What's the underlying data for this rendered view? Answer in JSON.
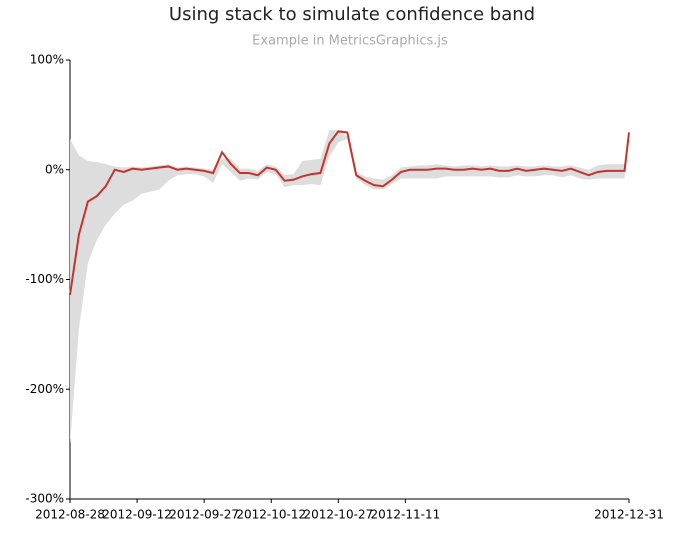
{
  "chart_data": {
    "type": "confidence-band",
    "title": "Using stack to simulate confidence band",
    "subtitle": "Example in MetricsGraphics.js",
    "x": [
      "2012-08-28",
      "2012-08-30",
      "2012-09-01",
      "2012-09-03",
      "2012-09-05",
      "2012-09-07",
      "2012-09-09",
      "2012-09-11",
      "2012-09-13",
      "2012-09-15",
      "2012-09-17",
      "2012-09-19",
      "2012-09-21",
      "2012-09-23",
      "2012-09-25",
      "2012-09-27",
      "2012-09-29",
      "2012-10-01",
      "2012-10-03",
      "2012-10-05",
      "2012-10-07",
      "2012-10-09",
      "2012-10-11",
      "2012-10-13",
      "2012-10-15",
      "2012-10-17",
      "2012-10-19",
      "2012-10-21",
      "2012-10-23",
      "2012-10-25",
      "2012-10-27",
      "2012-10-29",
      "2012-10-31",
      "2012-11-02",
      "2012-11-04",
      "2012-11-06",
      "2012-11-08",
      "2012-11-10",
      "2012-11-12",
      "2012-11-14",
      "2012-11-16",
      "2012-11-18",
      "2012-11-20",
      "2012-11-22",
      "2012-11-24",
      "2012-11-26",
      "2012-11-28",
      "2012-11-30",
      "2012-12-02",
      "2012-12-04",
      "2012-12-06",
      "2012-12-08",
      "2012-12-10",
      "2012-12-12",
      "2012-12-14",
      "2012-12-16",
      "2012-12-18",
      "2012-12-20",
      "2012-12-22",
      "2012-12-24",
      "2012-12-26",
      "2012-12-28",
      "2012-12-30",
      "2012-12-31"
    ],
    "line": {
      "color": "#c2342f",
      "values": [
        -114,
        -59,
        -29,
        -24,
        -15,
        0,
        -2,
        1,
        0,
        1,
        2,
        3,
        0,
        1,
        0,
        -1,
        -3,
        16,
        5,
        -3,
        -3,
        -5,
        2,
        0,
        -10,
        -9,
        -6,
        -4,
        -3,
        24,
        35,
        34,
        -5,
        -10,
        -14,
        -15,
        -9,
        -2,
        0,
        0,
        0,
        1,
        1,
        0,
        0,
        1,
        0,
        1,
        -1,
        -1,
        1,
        -1,
        0,
        1,
        0,
        -1,
        1,
        -2,
        -5,
        -2,
        -1,
        -1,
        -1,
        34
      ]
    },
    "band": {
      "color": "#dddddd",
      "upper": [
        28,
        13,
        8,
        7,
        5,
        3,
        2,
        3,
        2,
        3,
        4,
        5,
        2,
        3,
        2,
        1,
        0,
        10,
        10,
        1,
        1,
        -1,
        5,
        3,
        -5,
        -4,
        8,
        9,
        10,
        36,
        36,
        30,
        -2,
        -6,
        -8,
        -9,
        -5,
        2,
        3,
        4,
        4,
        5,
        4,
        3,
        4,
        4,
        3,
        4,
        3,
        3,
        4,
        3,
        3,
        4,
        3,
        3,
        4,
        2,
        0,
        4,
        5,
        5,
        5,
        36
      ],
      "lower": [
        -250,
        -145,
        -85,
        -64,
        -50,
        -40,
        -32,
        -28,
        -22,
        -20,
        -18,
        -10,
        -5,
        -4,
        -4,
        -6,
        -12,
        5,
        -2,
        -10,
        -8,
        -9,
        -2,
        -4,
        -16,
        -14,
        -14,
        -13,
        -14,
        12,
        25,
        28,
        -8,
        -14,
        -18,
        -18,
        -13,
        -8,
        -8,
        -8,
        -8,
        -8,
        -6,
        -6,
        -6,
        -6,
        -6,
        -6,
        -7,
        -7,
        -5,
        -6,
        -6,
        -5,
        -5,
        -7,
        -5,
        -8,
        -9,
        -8,
        -8,
        -8,
        -8,
        30
      ]
    },
    "xlim": [
      "2012-08-28",
      "2012-12-31"
    ],
    "xticks": [
      "2012-08-28",
      "2012-09-12",
      "2012-09-27",
      "2012-10-12",
      "2012-10-27",
      "2012-11-11",
      "2012-12-31"
    ],
    "ylim": [
      -300,
      100
    ],
    "yticks": [
      {
        "value": -300,
        "label": "-300%"
      },
      {
        "value": -200,
        "label": "-200%"
      },
      {
        "value": -100,
        "label": "-100%"
      },
      {
        "value": 0,
        "label": "0%"
      },
      {
        "value": 100,
        "label": "100%"
      }
    ]
  }
}
